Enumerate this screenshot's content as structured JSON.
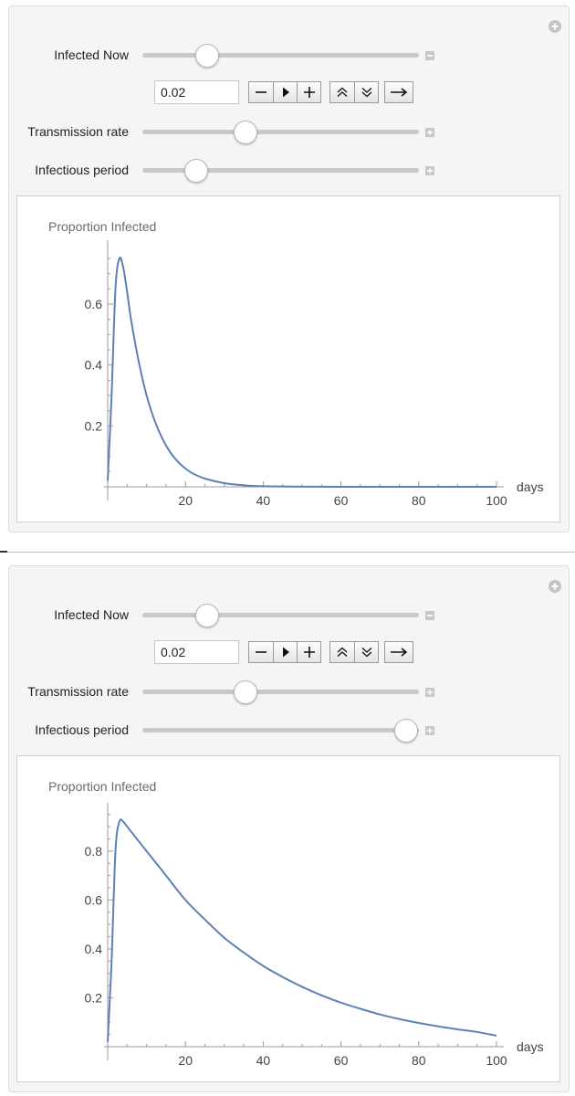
{
  "panels": [
    {
      "controls": {
        "infected_now_label": "Infected Now",
        "infected_now_value": "0.02",
        "infected_now_level": 0.23,
        "transmission_label": "Transmission rate",
        "transmission_level": 0.37,
        "infectious_label": "Infectious period",
        "infectious_level": 0.19
      },
      "plot_title": "Proportion Infected",
      "axis_label_x": "days",
      "ytick_labels": [
        "0.6",
        "0.4",
        "0.2"
      ],
      "xtick_labels": [
        "20",
        "40",
        "60",
        "80",
        "100"
      ]
    },
    {
      "controls": {
        "infected_now_label": "Infected Now",
        "infected_now_value": "0.02",
        "infected_now_level": 0.23,
        "transmission_label": "Transmission rate",
        "transmission_level": 0.37,
        "infectious_label": "Infectious period",
        "infectious_level": 0.95
      },
      "plot_title": "Proportion Infected",
      "axis_label_x": "days",
      "ytick_labels": [
        "0.8",
        "0.6",
        "0.4",
        "0.2"
      ],
      "xtick_labels": [
        "20",
        "40",
        "60",
        "80",
        "100"
      ]
    }
  ],
  "colors": {
    "curve": "#5e81b5",
    "panel_bg": "#f5f5f5"
  },
  "icons": [
    "plus-circle-icon",
    "minus-square-icon",
    "plus-square-icon",
    "minus-icon",
    "play-icon",
    "plus-icon",
    "double-up-icon",
    "double-down-icon",
    "right-arrow-icon"
  ],
  "chart_data": [
    {
      "type": "line",
      "title": "Proportion Infected",
      "xlabel": "days",
      "ylabel": "",
      "xlim": [
        0,
        100
      ],
      "ylim": [
        0,
        0.78
      ],
      "xticks": [
        20,
        40,
        60,
        80,
        100
      ],
      "yticks": [
        0.2,
        0.4,
        0.6
      ],
      "grid": false,
      "series": [
        {
          "x": [
            0,
            1,
            2,
            3,
            4,
            5,
            6,
            8,
            10,
            12,
            14,
            16,
            18,
            20,
            22,
            25,
            30,
            35,
            40,
            50,
            60,
            80,
            100
          ],
          "y": [
            0.02,
            0.3,
            0.65,
            0.75,
            0.72,
            0.64,
            0.55,
            0.41,
            0.3,
            0.22,
            0.16,
            0.115,
            0.083,
            0.06,
            0.043,
            0.027,
            0.012,
            0.005,
            0.002,
            0.0005,
            0.0001,
            0,
            0
          ]
        }
      ]
    },
    {
      "type": "line",
      "title": "Proportion Infected",
      "xlabel": "days",
      "ylabel": "",
      "xlim": [
        0,
        100
      ],
      "ylim": [
        0,
        0.96
      ],
      "xticks": [
        20,
        40,
        60,
        80,
        100
      ],
      "yticks": [
        0.2,
        0.4,
        0.6,
        0.8
      ],
      "grid": false,
      "series": [
        {
          "x": [
            0,
            1,
            2,
            3,
            4,
            5,
            7,
            10,
            15,
            20,
            25,
            30,
            35,
            40,
            45,
            50,
            55,
            60,
            65,
            70,
            75,
            80,
            85,
            90,
            95,
            100
          ],
          "y": [
            0.02,
            0.35,
            0.8,
            0.92,
            0.92,
            0.9,
            0.86,
            0.8,
            0.7,
            0.6,
            0.52,
            0.445,
            0.385,
            0.33,
            0.285,
            0.245,
            0.21,
            0.18,
            0.155,
            0.132,
            0.113,
            0.097,
            0.083,
            0.071,
            0.06,
            0.045
          ]
        }
      ]
    }
  ]
}
